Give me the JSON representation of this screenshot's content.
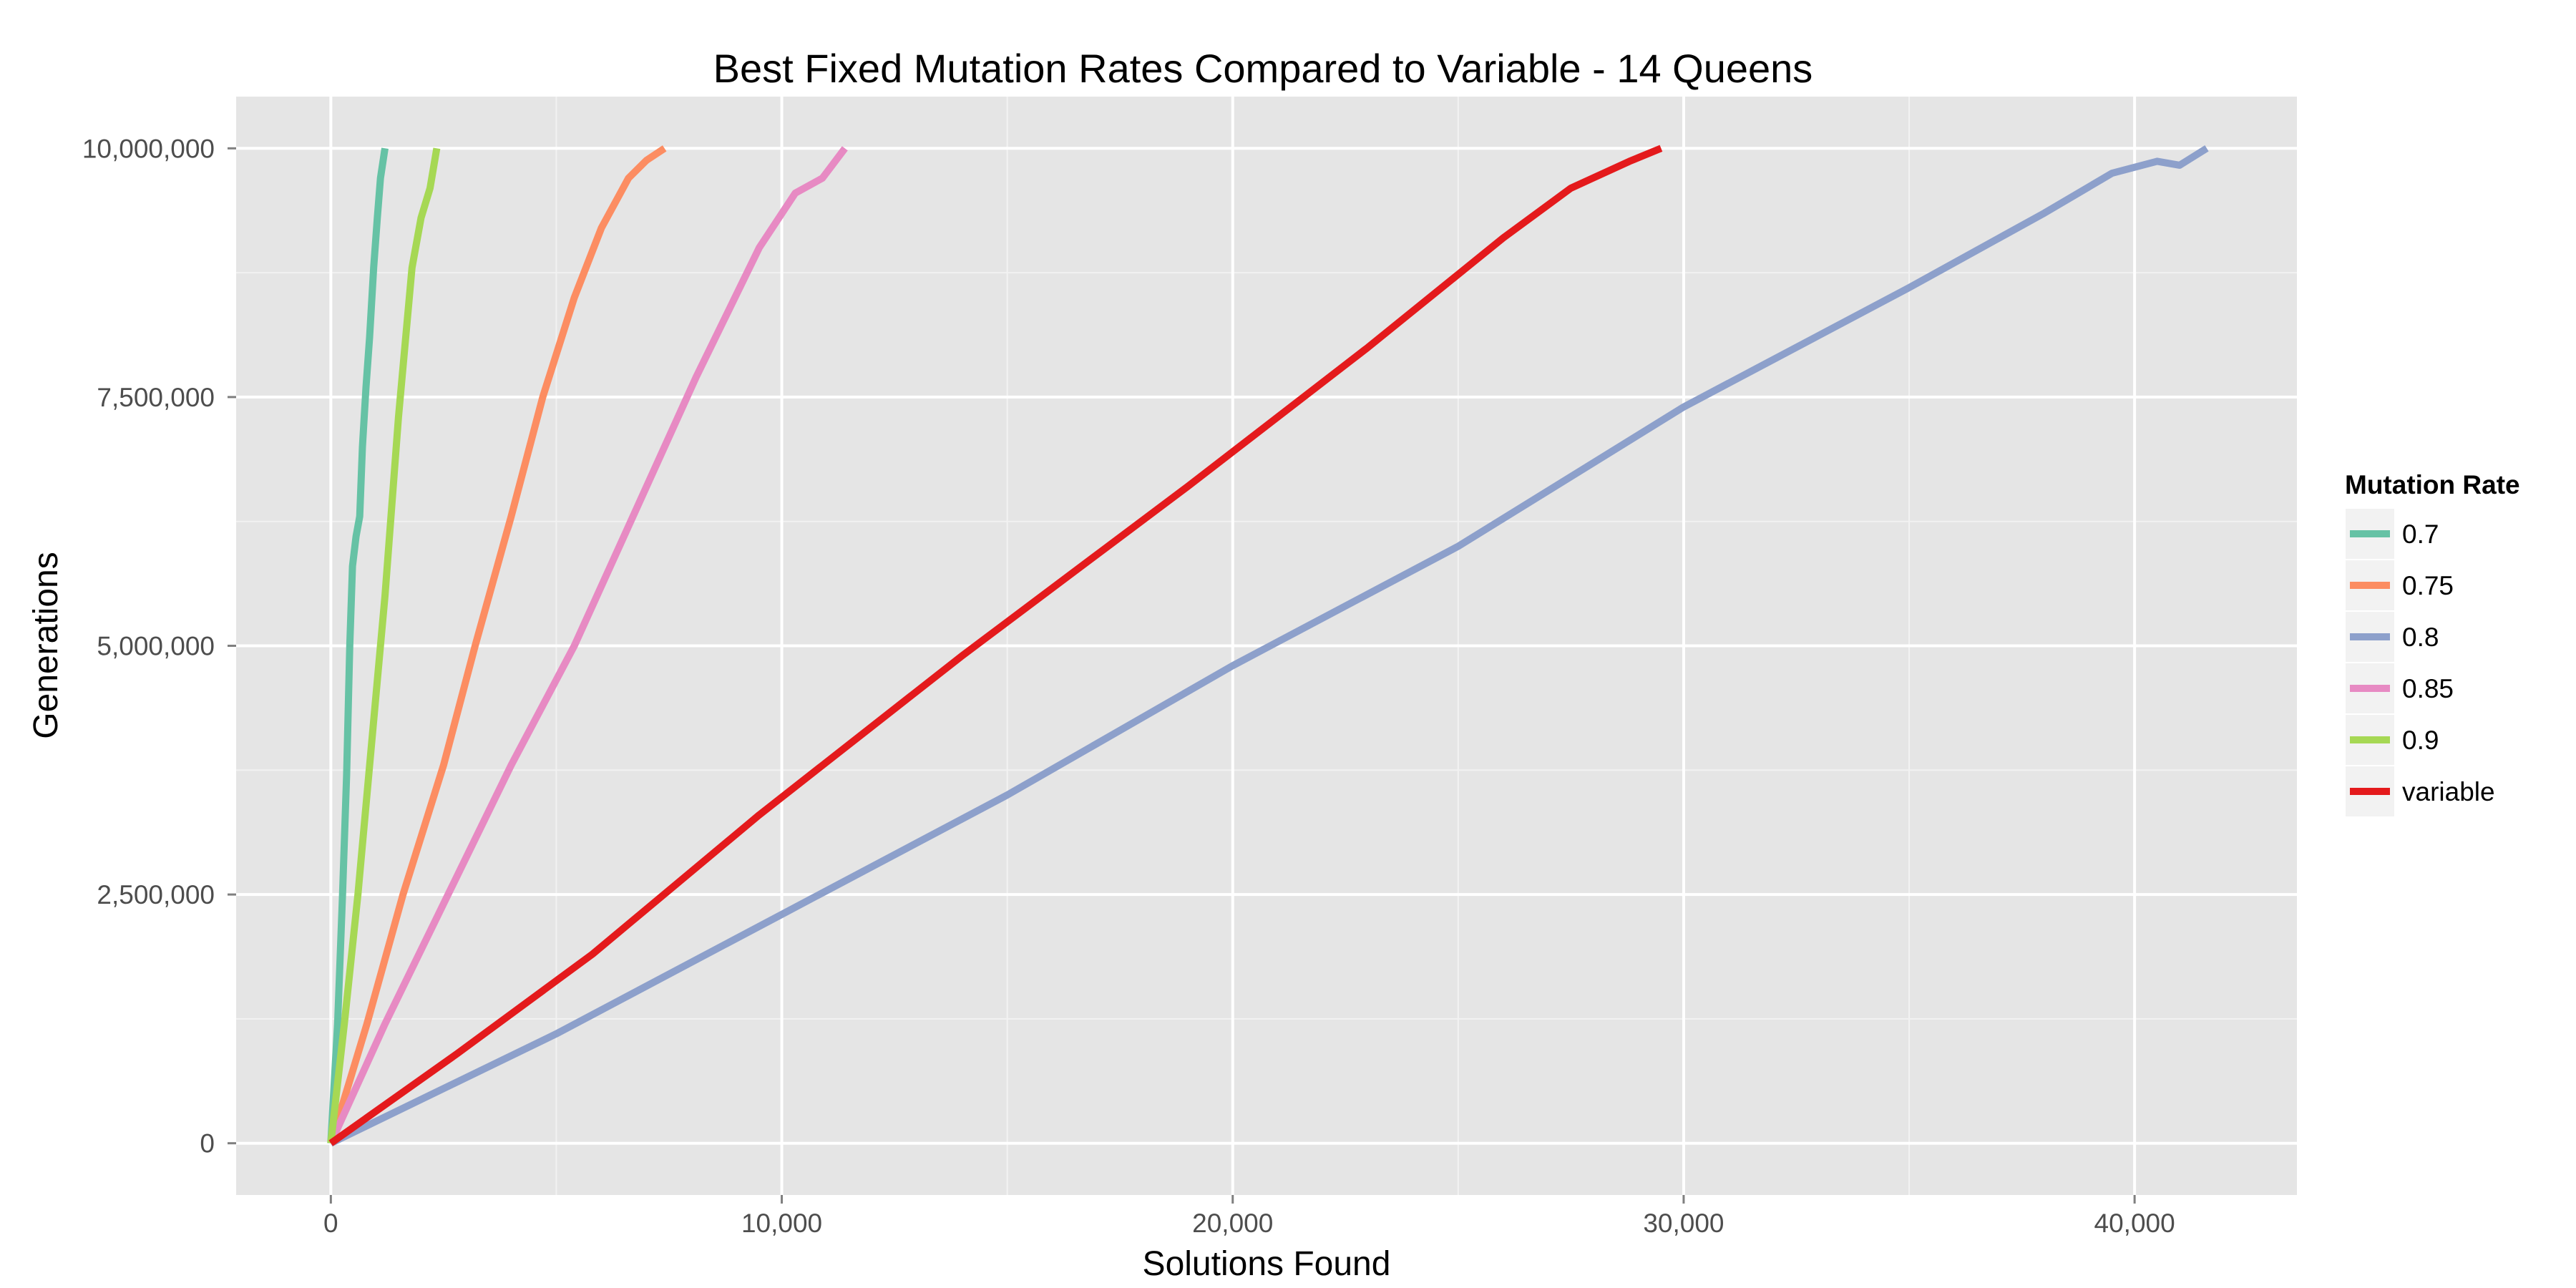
{
  "chart_data": {
    "type": "line",
    "title": "Best Fixed Mutation Rates Compared to Variable - 14 Queens",
    "xlabel": "Solutions Found",
    "ylabel": "Generations",
    "xlim": [
      -2100,
      43600
    ],
    "ylim": [
      -520000,
      10520000
    ],
    "x_ticks": [
      0,
      10000,
      20000,
      30000,
      40000
    ],
    "x_tick_labels": [
      "0",
      "10,000",
      "20,000",
      "30,000",
      "40,000"
    ],
    "y_ticks": [
      0,
      2500000,
      5000000,
      7500000,
      10000000
    ],
    "y_tick_labels": [
      "0",
      "2,500,000",
      "5,000,000",
      "7,500,000",
      "10,000,000"
    ],
    "grid": true,
    "legend": {
      "title": "Mutation Rate",
      "position": "right"
    },
    "series": [
      {
        "name": "0.7",
        "color": "#66c2a5",
        "points": [
          [
            0,
            0
          ],
          [
            150,
            1200000
          ],
          [
            260,
            2500000
          ],
          [
            350,
            3700000
          ],
          [
            420,
            5000000
          ],
          [
            480,
            5800000
          ],
          [
            560,
            6100000
          ],
          [
            640,
            6300000
          ],
          [
            700,
            7000000
          ],
          [
            780,
            7600000
          ],
          [
            860,
            8100000
          ],
          [
            950,
            8800000
          ],
          [
            1030,
            9300000
          ],
          [
            1100,
            9700000
          ],
          [
            1200,
            10000000
          ]
        ]
      },
      {
        "name": "0.75",
        "color": "#fc8d62",
        "points": [
          [
            0,
            0
          ],
          [
            800,
            1200000
          ],
          [
            1600,
            2500000
          ],
          [
            2500,
            3800000
          ],
          [
            3200,
            5000000
          ],
          [
            4000,
            6300000
          ],
          [
            4700,
            7500000
          ],
          [
            5400,
            8500000
          ],
          [
            6000,
            9200000
          ],
          [
            6600,
            9700000
          ],
          [
            7000,
            9880000
          ],
          [
            7400,
            10000000
          ]
        ]
      },
      {
        "name": "0.8",
        "color": "#8da0cb",
        "points": [
          [
            0,
            0
          ],
          [
            5000,
            1100000
          ],
          [
            10000,
            2300000
          ],
          [
            15000,
            3500000
          ],
          [
            20000,
            4800000
          ],
          [
            25000,
            6000000
          ],
          [
            30000,
            7400000
          ],
          [
            35000,
            8600000
          ],
          [
            38000,
            9350000
          ],
          [
            39500,
            9750000
          ],
          [
            40500,
            9870000
          ],
          [
            41000,
            9830000
          ],
          [
            41600,
            10000000
          ]
        ]
      },
      {
        "name": "0.85",
        "color": "#e78ac3",
        "points": [
          [
            0,
            0
          ],
          [
            1200,
            1200000
          ],
          [
            2600,
            2500000
          ],
          [
            4000,
            3800000
          ],
          [
            5400,
            5000000
          ],
          [
            6800,
            6400000
          ],
          [
            8100,
            7700000
          ],
          [
            9500,
            9000000
          ],
          [
            10300,
            9550000
          ],
          [
            10900,
            9700000
          ],
          [
            11400,
            10000000
          ]
        ]
      },
      {
        "name": "0.9",
        "color": "#a6d854",
        "points": [
          [
            0,
            0
          ],
          [
            300,
            1200000
          ],
          [
            600,
            2500000
          ],
          [
            900,
            4000000
          ],
          [
            1200,
            5500000
          ],
          [
            1500,
            7300000
          ],
          [
            1800,
            8800000
          ],
          [
            2000,
            9300000
          ],
          [
            2200,
            9600000
          ],
          [
            2350,
            10000000
          ]
        ]
      },
      {
        "name": "variable",
        "color": "#e41a1c",
        "points": [
          [
            0,
            0
          ],
          [
            2800,
            900000
          ],
          [
            5800,
            1900000
          ],
          [
            9500,
            3300000
          ],
          [
            14000,
            4900000
          ],
          [
            19000,
            6600000
          ],
          [
            23000,
            8000000
          ],
          [
            26000,
            9100000
          ],
          [
            27500,
            9600000
          ],
          [
            28800,
            9870000
          ],
          [
            29500,
            10000000
          ]
        ]
      }
    ]
  }
}
